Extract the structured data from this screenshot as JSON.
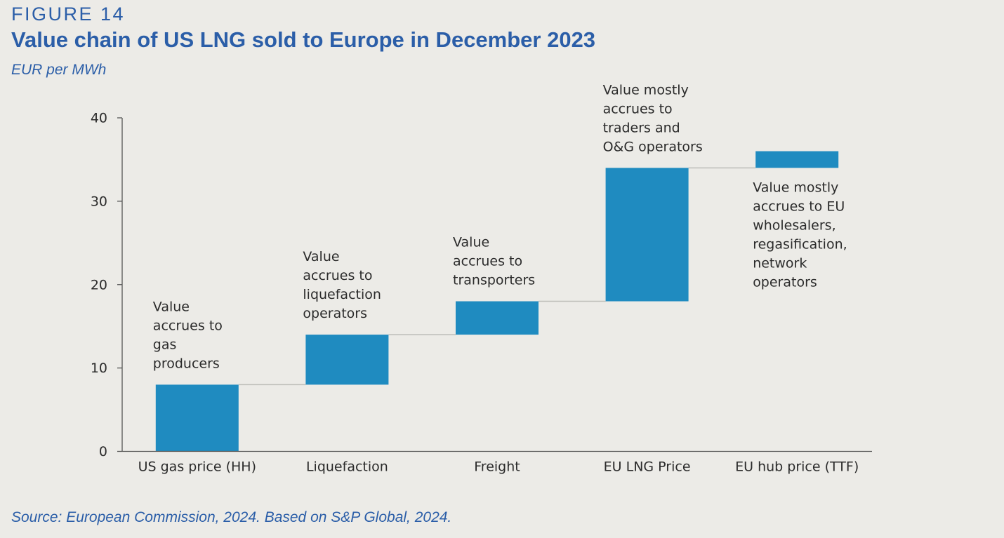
{
  "figure_label": "FIGURE 14",
  "title": "Value chain of US LNG sold to Europe in December 2023",
  "unit": "EUR per MWh",
  "source": "Source: European Commission, 2024. Based on S&P Global, 2024.",
  "colors": {
    "bar": "#1f8bc0",
    "heading": "#2b5ea8",
    "background": "#ecebe7"
  },
  "chart_data": {
    "type": "bar",
    "subtype": "waterfall",
    "categories": [
      "US gas price (HH)",
      "Liquefaction",
      "Freight",
      "EU LNG Price",
      "EU hub price (TTF)"
    ],
    "bars": [
      {
        "base": 0,
        "top": 8
      },
      {
        "base": 8,
        "top": 14
      },
      {
        "base": 14,
        "top": 18
      },
      {
        "base": 18,
        "top": 34
      },
      {
        "base": 34,
        "top": 36
      }
    ],
    "annotations": [
      [
        "Value",
        "accrues to",
        "gas",
        "producers"
      ],
      [
        "Value",
        "accrues to",
        "liquefaction",
        "operators"
      ],
      [
        "Value",
        "accrues to",
        "transporters"
      ],
      [
        "Value mostly",
        "accrues to",
        "traders and",
        "O&G operators"
      ],
      [
        "Value mostly",
        "accrues to EU",
        "wholesalers,",
        "regasification,",
        "network",
        "operators"
      ]
    ],
    "yticks": [
      0,
      10,
      20,
      30,
      40
    ],
    "ylim": [
      0,
      40
    ],
    "grid": false,
    "legend": "none"
  }
}
